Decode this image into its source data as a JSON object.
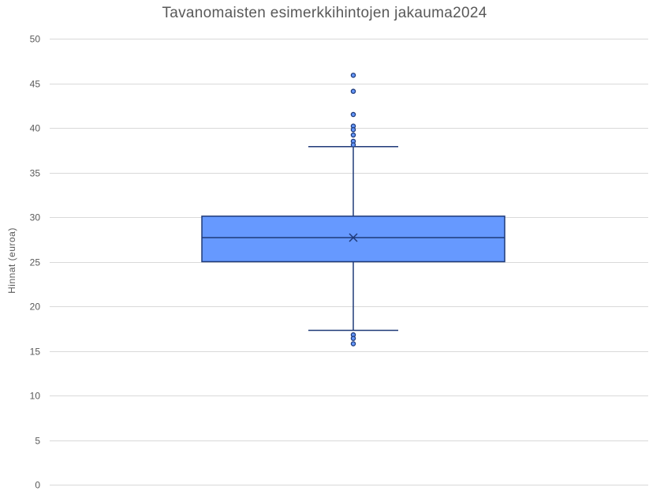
{
  "chart_data": {
    "type": "boxplot",
    "title": "Tavanomaisten esimerkkihintojen jakauma2024",
    "xlabel": "",
    "ylabel": "Hinnat (euroa)",
    "ylim": [
      0,
      50
    ],
    "yticks": [
      0,
      5,
      10,
      15,
      20,
      25,
      30,
      35,
      40,
      45,
      50
    ],
    "grid": true,
    "legend": "none",
    "box": {
      "whisker_low": 17.3,
      "q1": 25.0,
      "median": 27.7,
      "mean": 27.7,
      "q3": 30.1,
      "whisker_high": 37.9
    },
    "outliers": [
      45.9,
      44.1,
      41.5,
      40.2,
      39.8,
      39.2,
      38.5,
      38.1,
      16.8,
      16.4,
      15.8
    ],
    "colors": {
      "box_fill": "#6699FF",
      "box_stroke": "#1F3A78",
      "gridline": "#D9D9D9",
      "text": "#595959"
    }
  }
}
